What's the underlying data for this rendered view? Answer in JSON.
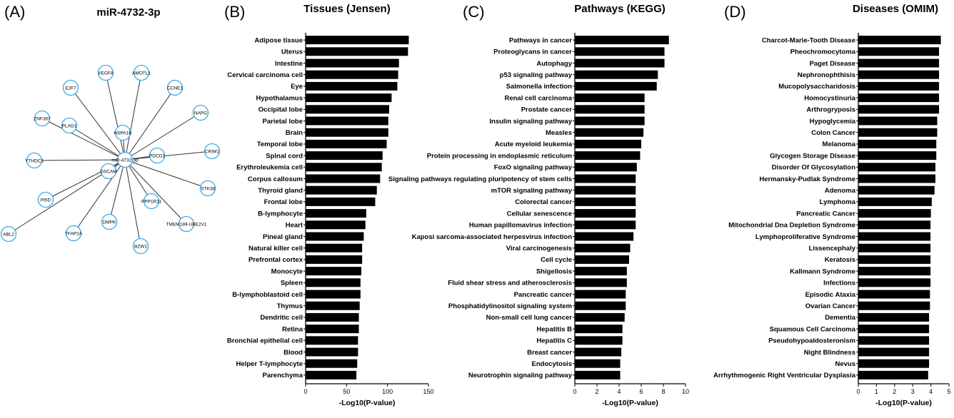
{
  "panel_labels": [
    "(A)",
    "(B)",
    "(C)",
    "(D)"
  ],
  "network": {
    "title": "miR-4732-3p",
    "center": "miR-4732-3p",
    "nodes": [
      "VEGFA",
      "AMOTL1",
      "E2F7",
      "CCNE1",
      "ZNF367",
      "PLAG1",
      "HSPA1B",
      "NAPG",
      "YTHDC1",
      "PDCD1",
      "CRIM1",
      "DSCAM",
      "PI5D",
      "STK38",
      "PPP1R11",
      "ABL2",
      "TFAP2A",
      "DMPK",
      "TMEM189-UBE2V1",
      "BZW1"
    ],
    "colors": {
      "node_stroke": "#3aa7e8",
      "edge": "#333333"
    }
  },
  "chart_data": [
    {
      "type": "bar",
      "orientation": "horizontal",
      "title": "Tissues (Jensen)",
      "xlabel": "-Log10(P-value)",
      "xlim": [
        0,
        150
      ],
      "xticks": [
        "0",
        "50",
        "100",
        "150"
      ],
      "categories": [
        "Adipose tissue",
        "Uterus",
        "Intestine",
        "Cervical carcinoma cell",
        "Eye",
        "Hypothalamus",
        "Occipital lobe",
        "Parietal lobe",
        "Brain",
        "Temporal lobe",
        "Spinal cord",
        "Erythroleukemia cell",
        "Corpus callosum",
        "Thyroid gland",
        "Frontal lobe",
        "B-lymphocyte",
        "Heart",
        "Pineal gland",
        "Natural killer cell",
        "Prefrontal cortex",
        "Monocyte",
        "Spleen",
        "B-lymphoblastoid cell",
        "Thymus",
        "Dendritic cell",
        "Retina",
        "Bronchial epithelial cell",
        "Blood",
        "Helper T-lymphocyte",
        "Parenchyma"
      ],
      "values": [
        126,
        125,
        114,
        113,
        112,
        105,
        102,
        101,
        101,
        99,
        94,
        93,
        91,
        87,
        85,
        74,
        73,
        71,
        69,
        69,
        68,
        67,
        67,
        66,
        65,
        65,
        64,
        64,
        63,
        62
      ],
      "bar_color": "#000000"
    },
    {
      "type": "bar",
      "orientation": "horizontal",
      "title": "Pathways (KEGG)",
      "xlabel": "-Log10(P-value)",
      "xlim": [
        0,
        10
      ],
      "xticks": [
        "0",
        "2",
        "4",
        "6",
        "8",
        "10"
      ],
      "categories": [
        "Pathways in cancer",
        "Proteoglycans in cancer",
        "Autophagy",
        "p53 signaling pathway",
        "Salmonella infection",
        "Renal cell carcinoma",
        "Prostate cancer",
        "Insulin signaling pathway",
        "Measles",
        "Acute myeloid leukemia",
        "Protein processing in endoplasmic reticulum",
        "FoxO signaling pathway",
        "Signaling pathways regulating pluripotency of stem cells",
        "mTOR signaling pathway",
        "Colorectal cancer",
        "Cellular senescence",
        "Human papillomavirus infection",
        "Kaposi sarcoma-associated herpesvirus infection",
        "Viral carcinogenesis",
        "Cell cycle",
        "Shigellosis",
        "Fluid shear stress and atherosclerosis",
        "Pancreatic cancer",
        "Phosphatidylinositol signaling system",
        "Non-small cell lung cancer",
        "Hepatitis B",
        "Hepatitis C",
        "Breast cancer",
        "Endocytosis",
        "Neurotrophin signaling pathway"
      ],
      "values": [
        8.5,
        8.1,
        8.1,
        7.5,
        7.4,
        6.3,
        6.3,
        6.3,
        6.2,
        6.0,
        5.9,
        5.6,
        5.5,
        5.5,
        5.5,
        5.5,
        5.5,
        5.3,
        5.0,
        4.9,
        4.7,
        4.7,
        4.6,
        4.6,
        4.5,
        4.3,
        4.3,
        4.2,
        4.1,
        4.1
      ],
      "bar_color": "#000000"
    },
    {
      "type": "bar",
      "orientation": "horizontal",
      "title": "Diseases (OMIM)",
      "xlabel": "-Log10(P-value)",
      "xlim": [
        0,
        5
      ],
      "xticks": [
        "0",
        "1",
        "2",
        "3",
        "4",
        "5"
      ],
      "categories": [
        "Charcot-Marie-Tooth Disease",
        "Pheochromocytoma",
        "Paget Disease",
        "Nephronophthisis",
        "Mucopolysaccharidosis",
        "Homocystinuria",
        "Arthrogryposis",
        "Hypoglycemia",
        "Colon Cancer",
        "Melanoma",
        "Glycogen Storage Disease",
        "Disorder Of Glycosylation",
        "Hermansky-Pudlak Syndrome",
        "Adenoma",
        "Lymphoma",
        "Pancreatic Cancer",
        "Mitochondrial Dna Depletion Syndrome",
        "Lymphoproliferative Syndrome",
        "Lissencephaly",
        "Keratosis",
        "Kallmann Syndrome",
        "Infections",
        "Episodic Ataxia",
        "Ovarian Cancer",
        "Dementia",
        "Squamous Cell Carcinoma",
        "Pseudohypoaldosteronism",
        "Night Blindness",
        "Nevus",
        "Arrhythmogenic Right Ventricular Dysplasia"
      ],
      "values": [
        4.55,
        4.45,
        4.45,
        4.45,
        4.45,
        4.45,
        4.45,
        4.35,
        4.35,
        4.3,
        4.3,
        4.25,
        4.25,
        4.2,
        4.05,
        4.0,
        3.98,
        3.98,
        3.98,
        3.98,
        3.98,
        3.98,
        3.95,
        3.95,
        3.9,
        3.9,
        3.9,
        3.9,
        3.9,
        3.85
      ],
      "bar_color": "#000000"
    }
  ]
}
